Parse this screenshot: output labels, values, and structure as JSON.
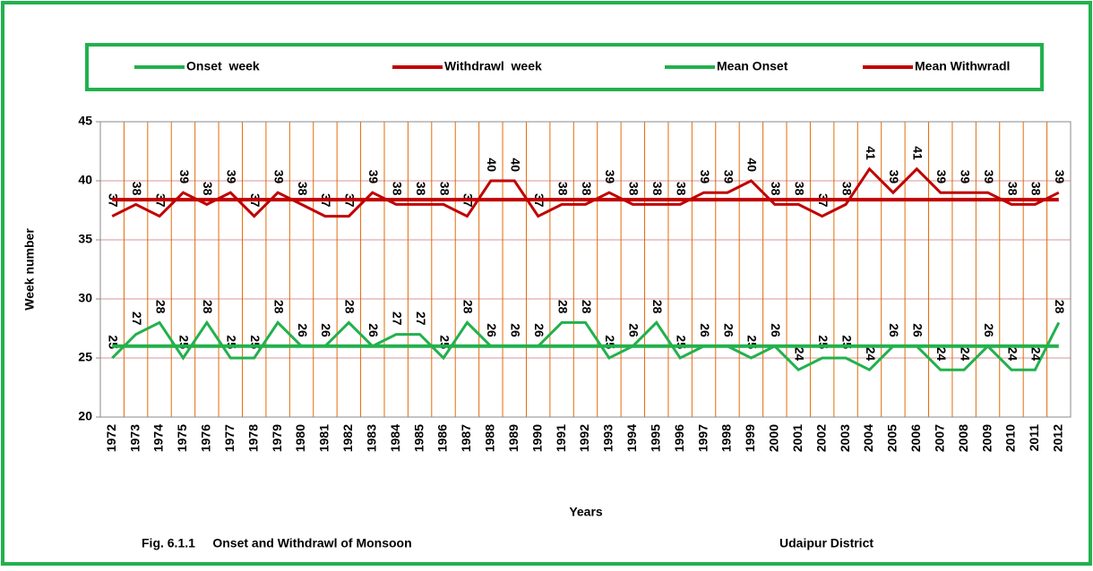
{
  "chart_data": {
    "type": "line",
    "legend": "top",
    "grid": true,
    "xlabel": "Years",
    "ylabel": "Week number",
    "caption": [
      "Fig. 6.1.1     Onset and Withdrawl of Monsoon",
      "Udaipur District"
    ],
    "categories": [
      "1972",
      "1973",
      "1974",
      "1975",
      "1976",
      "1977",
      "1978",
      "1979",
      "1980",
      "1981",
      "1982",
      "1983",
      "1984",
      "1985",
      "1986",
      "1987",
      "1988",
      "1989",
      "1990",
      "1991",
      "1992",
      "1993",
      "1994",
      "1995",
      "1996",
      "1997",
      "1998",
      "1999",
      "2000",
      "2001",
      "2002",
      "2003",
      "2004",
      "2005",
      "2006",
      "2007",
      "2008",
      "2009",
      "2010",
      "2011",
      "2012"
    ],
    "ylim": [
      20,
      45
    ],
    "yticks": [
      20,
      25,
      30,
      35,
      40,
      45
    ],
    "series": [
      {
        "name": "Onset  week",
        "color": "#22b14c",
        "labels": true,
        "values": [
          25,
          27,
          28,
          25,
          28,
          25,
          25,
          28,
          26,
          26,
          28,
          26,
          27,
          27,
          25,
          28,
          26,
          26,
          26,
          28,
          28,
          25,
          26,
          28,
          25,
          26,
          26,
          25,
          26,
          24,
          25,
          25,
          24,
          26,
          26,
          24,
          24,
          26,
          24,
          24,
          28
        ]
      },
      {
        "name": "Withdrawl  week",
        "color": "#c00000",
        "labels": true,
        "values": [
          37,
          38,
          37,
          39,
          38,
          39,
          37,
          39,
          38,
          37,
          37,
          39,
          38,
          38,
          38,
          37,
          40,
          40,
          37,
          38,
          38,
          39,
          38,
          38,
          38,
          39,
          39,
          40,
          38,
          38,
          37,
          38,
          41,
          39,
          41,
          39,
          39,
          39,
          38,
          38,
          39
        ]
      },
      {
        "name": "Mean Onset",
        "color": "#22b14c",
        "labels": false,
        "values": [
          26,
          26,
          26,
          26,
          26,
          26,
          26,
          26,
          26,
          26,
          26,
          26,
          26,
          26,
          26,
          26,
          26,
          26,
          26,
          26,
          26,
          26,
          26,
          26,
          26,
          26,
          26,
          26,
          26,
          26,
          26,
          26,
          26,
          26,
          26,
          26,
          26,
          26,
          26,
          26,
          26
        ]
      },
      {
        "name": "Mean Withwradl",
        "color": "#c00000",
        "labels": false,
        "values": [
          38.4,
          38.4,
          38.4,
          38.4,
          38.4,
          38.4,
          38.4,
          38.4,
          38.4,
          38.4,
          38.4,
          38.4,
          38.4,
          38.4,
          38.4,
          38.4,
          38.4,
          38.4,
          38.4,
          38.4,
          38.4,
          38.4,
          38.4,
          38.4,
          38.4,
          38.4,
          38.4,
          38.4,
          38.4,
          38.4,
          38.4,
          38.4,
          38.4,
          38.4,
          38.4,
          38.4,
          38.4,
          38.4,
          38.4,
          38.4,
          38.4
        ]
      }
    ]
  }
}
